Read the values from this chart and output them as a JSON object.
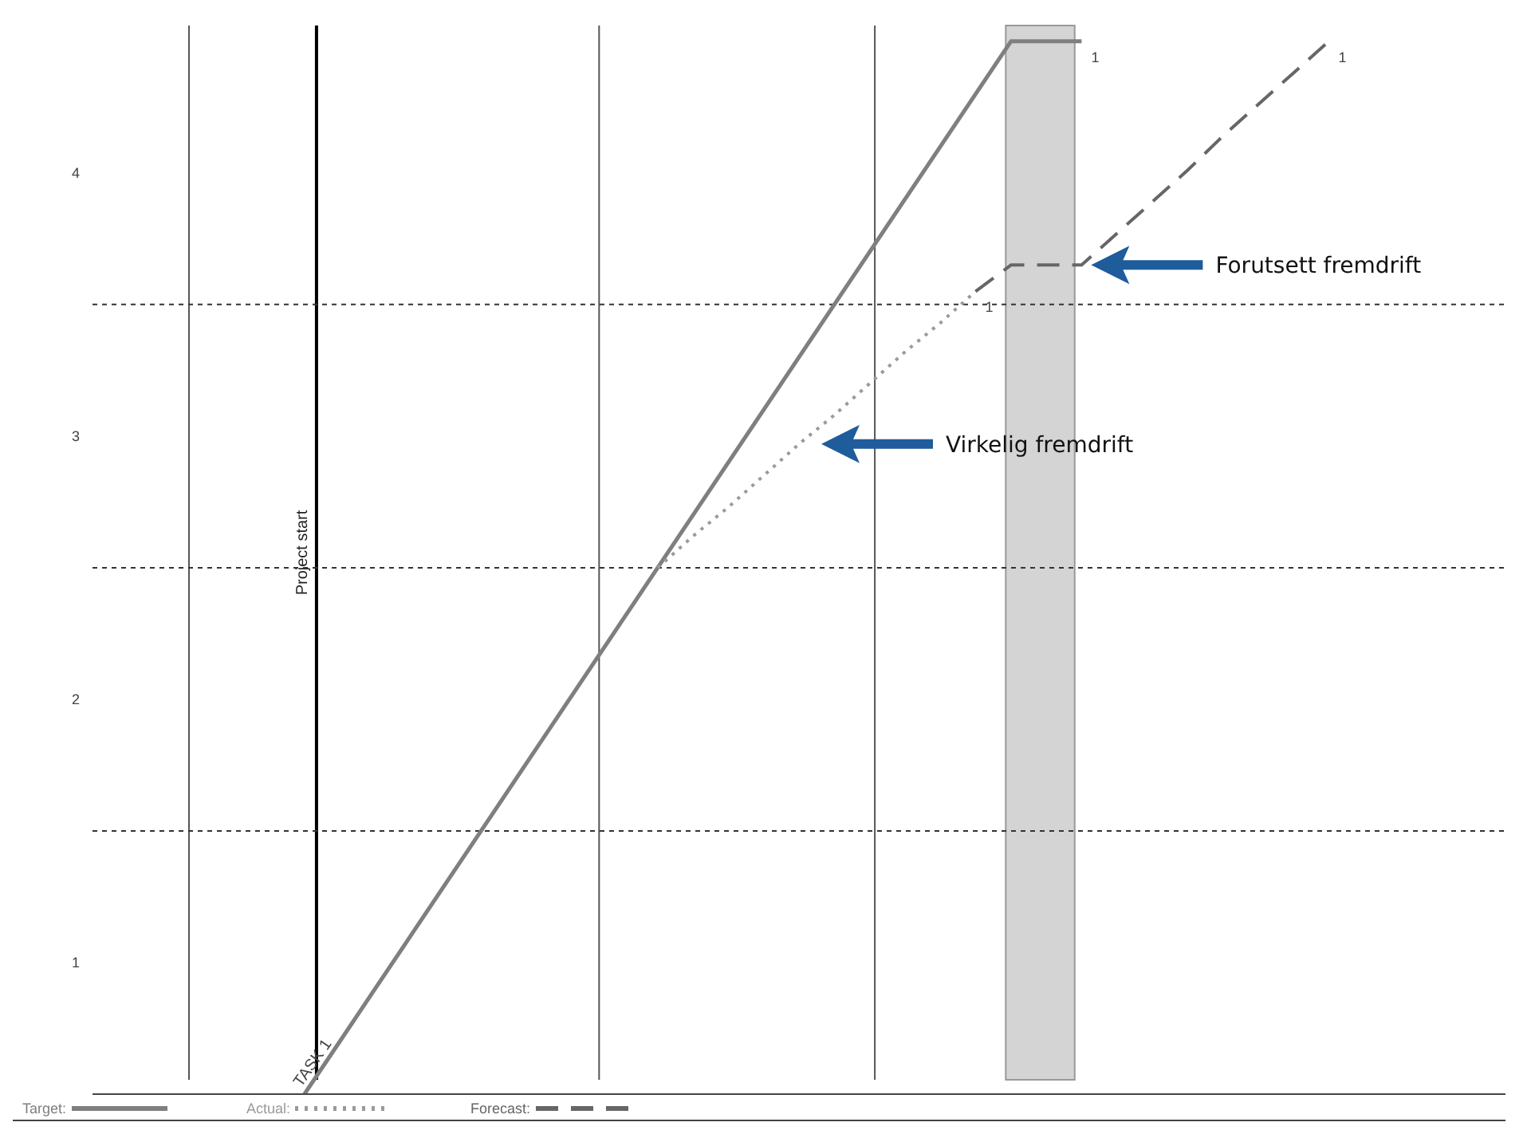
{
  "chart_data": {
    "type": "line",
    "categories": [
      null,
      null,
      null,
      null,
      null,
      null,
      null,
      null,
      null,
      null,
      null,
      null,
      null,
      null,
      null,
      null,
      null,
      null,
      null,
      null,
      null,
      null,
      null,
      null,
      null,
      null,
      null,
      null,
      null,
      null,
      null,
      null,
      null,
      null,
      null,
      null,
      null,
      null,
      null,
      null,
      null
    ],
    "series": [
      {
        "name": "Target:",
        "color": "#7f7f7f",
        "line_style": "solid",
        "values": [
          null,
          null,
          null,
          null,
          null,
          null,
          0,
          0.2,
          0.4,
          0.6,
          0.8,
          1.0,
          1.2,
          1.4,
          1.6,
          1.8,
          2.0,
          2.2,
          2.4,
          2.6,
          2.8,
          3.0,
          3.2,
          3.4,
          3.6,
          3.8,
          4.0,
          4.0,
          4.0,
          null,
          null,
          null,
          null,
          null,
          null,
          null,
          null,
          null,
          null,
          null,
          null
        ]
      },
      {
        "name": "Actual:",
        "color": "#9a9a9a",
        "line_style": "dotted",
        "values": [
          null,
          null,
          null,
          null,
          null,
          null,
          null,
          null,
          null,
          null,
          null,
          null,
          null,
          null,
          null,
          null,
          2.0,
          2.12,
          2.23,
          2.35,
          2.47,
          2.58,
          2.7,
          2.82,
          2.93,
          3.05,
          null,
          null,
          null,
          null,
          null,
          null,
          null,
          null,
          null,
          null,
          null,
          null,
          null,
          null,
          null
        ]
      },
      {
        "name": "Forecast:",
        "color": "#666666",
        "line_style": "dashed",
        "values": [
          null,
          null,
          null,
          null,
          null,
          null,
          null,
          null,
          null,
          null,
          null,
          null,
          null,
          null,
          null,
          null,
          null,
          null,
          null,
          null,
          null,
          null,
          null,
          null,
          null,
          3.05,
          3.15,
          3.15,
          3.15,
          3.27,
          3.39,
          3.51,
          3.64,
          3.76,
          3.88,
          4.0,
          null,
          null,
          null,
          null,
          null
        ]
      }
    ],
    "ylim": [
      0,
      4.06
    ],
    "yticks": [
      {
        "value": 0.5,
        "label": "1"
      },
      {
        "value": 1.5,
        "label": "2"
      },
      {
        "value": 2.5,
        "label": "3"
      },
      {
        "value": 3.5,
        "label": "4"
      }
    ],
    "tick_labels": "y",
    "ref_lines": [
      {
        "axis": "y",
        "value": 1,
        "color": "#333333",
        "line_style": "dashed"
      },
      {
        "axis": "y",
        "value": 2,
        "color": "#333333",
        "line_style": "dashed"
      },
      {
        "axis": "y",
        "value": 3,
        "color": "#333333",
        "line_style": "dashed"
      }
    ],
    "annotations": [
      "1",
      "1",
      "1",
      "TASK 1",
      "Virkelig fremdrift",
      "Forutsett fremdrift",
      "Project start"
    ],
    "legend": "bottom left"
  }
}
